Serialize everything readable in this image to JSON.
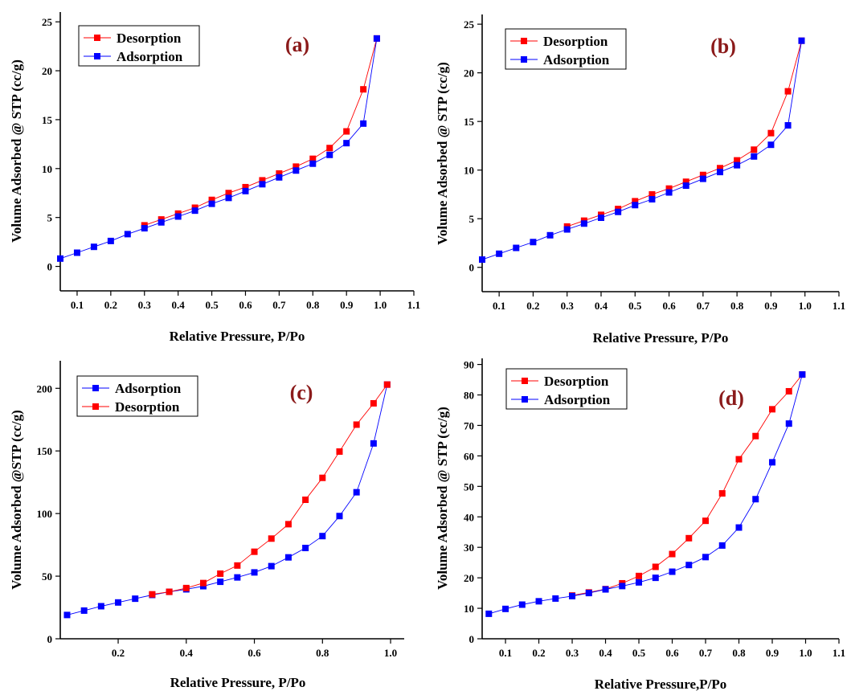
{
  "chart_data": [
    {
      "type": "line",
      "panel_label": "(a)",
      "xlabel": "Relative Pressure, P/Po",
      "ylabel": "Volume Adsorbed @ STP (cc/g)",
      "xlim": [
        0.05,
        1.1
      ],
      "ylim": [
        -2.5,
        26
      ],
      "xticks": [
        0.1,
        0.2,
        0.3,
        0.4,
        0.5,
        0.6,
        0.7,
        0.8,
        0.9,
        1.0,
        1.1
      ],
      "xtick_labels": [
        "0.1",
        "0.2",
        "0.3",
        "0.4",
        "0.5",
        "0.6",
        "0.7",
        "0.8",
        "0.9",
        "1.0",
        "1.1"
      ],
      "yticks": [
        0,
        5,
        10,
        15,
        20,
        25
      ],
      "ytick_labels": [
        "0",
        "5",
        "10",
        "15",
        "20",
        "25"
      ],
      "legend": [
        "Desorption",
        "Adsorption"
      ],
      "legend_position": "top-left",
      "series": [
        {
          "name": "Desorption",
          "color": "#ff0000",
          "x": [
            0.3,
            0.35,
            0.4,
            0.45,
            0.5,
            0.55,
            0.6,
            0.65,
            0.7,
            0.75,
            0.8,
            0.85,
            0.9,
            0.95,
            0.99
          ],
          "y": [
            4.2,
            4.8,
            5.4,
            6.0,
            6.8,
            7.5,
            8.1,
            8.8,
            9.5,
            10.2,
            11.0,
            12.1,
            13.8,
            18.1,
            23.3
          ]
        },
        {
          "name": "Adsorption",
          "color": "#0000ff",
          "x": [
            0.05,
            0.1,
            0.15,
            0.2,
            0.25,
            0.3,
            0.35,
            0.4,
            0.45,
            0.5,
            0.55,
            0.6,
            0.65,
            0.7,
            0.75,
            0.8,
            0.85,
            0.9,
            0.95,
            0.99
          ],
          "y": [
            0.8,
            1.4,
            2.0,
            2.6,
            3.3,
            3.9,
            4.5,
            5.1,
            5.7,
            6.4,
            7.0,
            7.7,
            8.4,
            9.1,
            9.8,
            10.5,
            11.4,
            12.6,
            14.6,
            23.3
          ]
        }
      ]
    },
    {
      "type": "line",
      "panel_label": "(b)",
      "xlabel": "Relative Pressure, P/Po",
      "ylabel": "Volume Adsorbed @ STP (cc/g)",
      "xlim": [
        0.05,
        1.1
      ],
      "ylim": [
        -2.5,
        26
      ],
      "xticks": [
        0.1,
        0.2,
        0.3,
        0.4,
        0.5,
        0.6,
        0.7,
        0.8,
        0.9,
        1.0,
        1.1
      ],
      "xtick_labels": [
        "0.1",
        "0.2",
        "0.3",
        "0.4",
        "0.5",
        "0.6",
        "0.7",
        "0.8",
        "0.9",
        "1.0",
        "1.1"
      ],
      "yticks": [
        0,
        5,
        10,
        15,
        20,
        25
      ],
      "ytick_labels": [
        "0",
        "5",
        "10",
        "15",
        "20",
        "25"
      ],
      "legend": [
        "Desorption",
        "Adsorption"
      ],
      "legend_position": "top-left",
      "series": [
        {
          "name": "Desorption",
          "color": "#ff0000",
          "x": [
            0.3,
            0.35,
            0.4,
            0.45,
            0.5,
            0.55,
            0.6,
            0.65,
            0.7,
            0.75,
            0.8,
            0.85,
            0.9,
            0.95,
            0.99
          ],
          "y": [
            4.2,
            4.8,
            5.4,
            6.0,
            6.8,
            7.5,
            8.1,
            8.8,
            9.5,
            10.2,
            11.0,
            12.1,
            13.8,
            18.1,
            23.3
          ]
        },
        {
          "name": "Adsorption",
          "color": "#0000ff",
          "x": [
            0.05,
            0.1,
            0.15,
            0.2,
            0.25,
            0.3,
            0.35,
            0.4,
            0.45,
            0.5,
            0.55,
            0.6,
            0.65,
            0.7,
            0.75,
            0.8,
            0.85,
            0.9,
            0.95,
            0.99
          ],
          "y": [
            0.8,
            1.4,
            2.0,
            2.6,
            3.3,
            3.9,
            4.5,
            5.1,
            5.7,
            6.4,
            7.0,
            7.7,
            8.4,
            9.1,
            9.8,
            10.5,
            11.4,
            12.6,
            14.6,
            23.3
          ]
        }
      ]
    },
    {
      "type": "line",
      "panel_label": "(c)",
      "xlabel": "Relative Pressure, P/Po",
      "ylabel": "Volume Adsorbed @STP (cc/g)",
      "xlim": [
        0.03,
        1.04
      ],
      "ylim": [
        0,
        222
      ],
      "xticks": [
        0.2,
        0.4,
        0.6,
        0.8,
        1.0
      ],
      "xtick_labels": [
        "0.2",
        "0.4",
        "0.6",
        "0.8",
        "1.0"
      ],
      "yticks": [
        0,
        50,
        100,
        150,
        200
      ],
      "ytick_labels": [
        "0",
        "50",
        "100",
        "150",
        "200"
      ],
      "legend": [
        "Adsorption",
        "Desorption"
      ],
      "legend_position": "top-left",
      "series": [
        {
          "name": "Adsorption",
          "color": "#0000ff",
          "x": [
            0.05,
            0.1,
            0.15,
            0.2,
            0.25,
            0.3,
            0.35,
            0.4,
            0.45,
            0.5,
            0.55,
            0.6,
            0.65,
            0.7,
            0.75,
            0.8,
            0.85,
            0.9,
            0.95,
            0.99
          ],
          "y": [
            19,
            22.5,
            26,
            29,
            32,
            35,
            37.5,
            39.5,
            42,
            45.5,
            49,
            53,
            58,
            65,
            72.5,
            82,
            98,
            117,
            156,
            203
          ]
        },
        {
          "name": "Desorption",
          "color": "#ff0000",
          "x": [
            0.3,
            0.35,
            0.4,
            0.45,
            0.5,
            0.55,
            0.6,
            0.65,
            0.7,
            0.75,
            0.8,
            0.85,
            0.9,
            0.95,
            0.99
          ],
          "y": [
            35.5,
            37.5,
            40.5,
            44.5,
            52,
            58.5,
            69.5,
            80,
            91.5,
            111,
            128.5,
            149.5,
            171,
            188,
            203
          ]
        }
      ]
    },
    {
      "type": "line",
      "panel_label": "(d)",
      "xlabel": "Relative Pressure,P/Po",
      "ylabel": "Volume Adsorbed @ STP (cc/g)",
      "xlim": [
        0.03,
        1.1
      ],
      "ylim": [
        0,
        92
      ],
      "xticks": [
        0.1,
        0.2,
        0.3,
        0.4,
        0.5,
        0.6,
        0.7,
        0.8,
        0.9,
        1.0,
        1.1
      ],
      "xtick_labels": [
        "0.1",
        "0.2",
        "0.3",
        "0.4",
        "0.5",
        "0.6",
        "0.7",
        "0.8",
        "0.9",
        "1.0",
        "1.1"
      ],
      "yticks": [
        0,
        10,
        20,
        30,
        40,
        50,
        60,
        70,
        80,
        90
      ],
      "ytick_labels": [
        "0",
        "10",
        "20",
        "30",
        "40",
        "50",
        "60",
        "70",
        "80",
        "90"
      ],
      "legend": [
        "Desorption",
        "Adsorption"
      ],
      "legend_position": "top-left",
      "series": [
        {
          "name": "Desorption",
          "color": "#ff0000",
          "x": [
            0.3,
            0.35,
            0.4,
            0.45,
            0.5,
            0.55,
            0.6,
            0.65,
            0.7,
            0.75,
            0.8,
            0.85,
            0.9,
            0.95,
            0.99
          ],
          "y": [
            14.2,
            15.2,
            16.3,
            18.2,
            20.6,
            23.6,
            27.8,
            33.0,
            38.7,
            47.7,
            58.9,
            66.5,
            75.3,
            81.2,
            86.7
          ]
        },
        {
          "name": "Adsorption",
          "color": "#0000ff",
          "x": [
            0.05,
            0.1,
            0.15,
            0.2,
            0.25,
            0.3,
            0.35,
            0.4,
            0.45,
            0.5,
            0.55,
            0.6,
            0.65,
            0.7,
            0.75,
            0.8,
            0.85,
            0.9,
            0.95,
            0.99
          ],
          "y": [
            8.2,
            9.8,
            11.2,
            12.3,
            13.2,
            14.0,
            15.0,
            16.2,
            17.3,
            18.5,
            20.0,
            22.0,
            24.2,
            26.8,
            30.6,
            36.5,
            45.8,
            57.9,
            70.6,
            86.7
          ]
        }
      ]
    }
  ]
}
